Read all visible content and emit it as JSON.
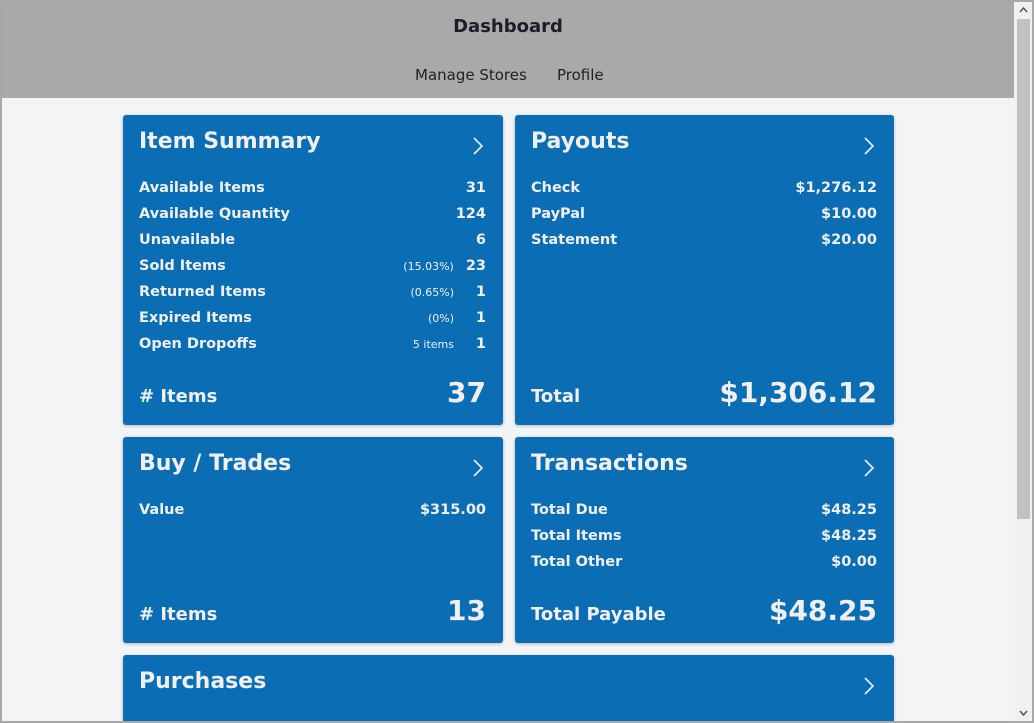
{
  "header": {
    "title": "Dashboard",
    "nav": [
      "Manage Stores",
      "Profile"
    ]
  },
  "cards": [
    {
      "title": "Item Summary",
      "rows": [
        {
          "label": "Available Items",
          "value": "31"
        },
        {
          "label": "Available Quantity",
          "value": "124"
        },
        {
          "label": "Unavailable",
          "value": "6"
        },
        {
          "label": "Sold Items",
          "note": "(15.03%)",
          "value": "23"
        },
        {
          "label": "Returned Items",
          "note": "(0.65%)",
          "value": "1"
        },
        {
          "label": "Expired Items",
          "note": "(0%)",
          "value": "1"
        },
        {
          "label": "Open Dropoffs",
          "note": "5 items",
          "value": "1"
        }
      ],
      "footer": {
        "label": "# Items",
        "value": "37"
      }
    },
    {
      "title": "Payouts",
      "rows": [
        {
          "label": "Check",
          "value": "$1,276.12"
        },
        {
          "label": "PayPal",
          "value": "$10.00"
        },
        {
          "label": "Statement",
          "value": "$20.00"
        }
      ],
      "footer": {
        "label": "Total",
        "value": "$1,306.12"
      }
    },
    {
      "title": "Buy / Trades",
      "rows": [
        {
          "label": "Value",
          "value": "$315.00"
        }
      ],
      "footer": {
        "label": "# Items",
        "value": "13"
      }
    },
    {
      "title": "Transactions",
      "rows": [
        {
          "label": "Total Due",
          "value": "$48.25"
        },
        {
          "label": "Total Items",
          "value": "$48.25"
        },
        {
          "label": "Total Other",
          "value": "$0.00"
        }
      ],
      "footer": {
        "label": "Total Payable",
        "value": "$48.25"
      }
    },
    {
      "title": "Purchases",
      "rows": []
    }
  ]
}
